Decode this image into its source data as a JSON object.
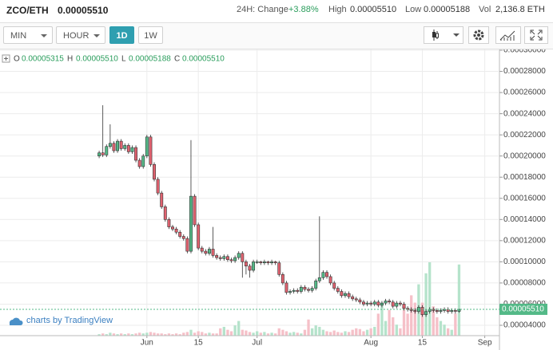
{
  "header": {
    "pair": "ZCO/ETH",
    "price": "0.00005510",
    "change_label": "24H: Change",
    "change": "+3.88%",
    "high_label": "High",
    "high": "0.00005510",
    "low_label": "Low",
    "low": "0.00005188",
    "vol_label": "Vol",
    "vol": "2,136.8 ETH"
  },
  "toolbar": {
    "min": "MIN",
    "hour": "HOUR",
    "day": "1D",
    "week": "1W"
  },
  "chart_data": {
    "type": "candlestick",
    "legend": {
      "o_label": "O",
      "o": "0.00005315",
      "h_label": "H",
      "h": "0.00005510",
      "l_label": "L",
      "l": "0.00005188",
      "c_label": "C",
      "c": "0.00005510"
    },
    "last_label": "0.00005510",
    "watermark": "charts by TradingView",
    "up_color": "#53b987",
    "down_color": "#e0626f",
    "up_volume_color": "#b5e3cb",
    "down_volume_color": "#f5c0c8",
    "grid": true,
    "xlim": [
      -9,
      127
    ],
    "xticks": [
      {
        "value": 31,
        "label": "Jun"
      },
      {
        "value": 45,
        "label": "15"
      },
      {
        "value": 61,
        "label": "Jul"
      },
      {
        "value": 92,
        "label": "Aug"
      },
      {
        "value": 106,
        "label": "15"
      },
      {
        "value": 123,
        "label": "Sep"
      }
    ],
    "ylim": [
      3.02e-05,
      0.0003
    ],
    "yticks": [
      {
        "value": 4e-05,
        "label": "0.00004000"
      },
      {
        "value": 6e-05,
        "label": "0.00006000"
      },
      {
        "value": 8e-05,
        "label": "0.00008000"
      },
      {
        "value": 0.0001,
        "label": "0.00010000"
      },
      {
        "value": 0.00012,
        "label": "0.00012000"
      },
      {
        "value": 0.00014,
        "label": "0.00014000"
      },
      {
        "value": 0.00016,
        "label": "0.00016000"
      },
      {
        "value": 0.00018,
        "label": "0.00018000"
      },
      {
        "value": 0.0002,
        "label": "0.00020000"
      },
      {
        "value": 0.00022,
        "label": "0.00022000"
      },
      {
        "value": 0.00024,
        "label": "0.00024000"
      },
      {
        "value": 0.00026,
        "label": "0.00026000"
      },
      {
        "value": 0.00028,
        "label": "0.00028000"
      },
      {
        "value": 0.0003,
        "label": "0.00030000"
      }
    ],
    "x": [
      18,
      19,
      20,
      21,
      22,
      23,
      24,
      25,
      26,
      27,
      28,
      29,
      30,
      31,
      32,
      33,
      34,
      35,
      36,
      37,
      38,
      39,
      40,
      41,
      42,
      43,
      44,
      45,
      46,
      47,
      48,
      49,
      50,
      51,
      52,
      53,
      54,
      55,
      56,
      57,
      58,
      59,
      60,
      61,
      62,
      63,
      64,
      65,
      66,
      67,
      68,
      69,
      70,
      71,
      72,
      73,
      74,
      75,
      76,
      77,
      78,
      79,
      80,
      81,
      82,
      83,
      84,
      85,
      86,
      87,
      88,
      89,
      90,
      91,
      92,
      93,
      94,
      95,
      96,
      97,
      98,
      99,
      100,
      101,
      102,
      103,
      104,
      105,
      106,
      107,
      108,
      109,
      110,
      111,
      112,
      113,
      114,
      115,
      116
    ],
    "open": [
      0.0002,
      0.000203,
      0.000201,
      0.000209,
      0.000212,
      0.000205,
      0.000214,
      0.000207,
      0.00021,
      0.000204,
      0.000208,
      0.000196,
      0.00019,
      0.0002,
      0.000218,
      0.000192,
      0.000178,
      0.000165,
      0.000152,
      0.00014,
      0.000133,
      0.000131,
      0.000128,
      0.000124,
      0.000122,
      0.00011,
      0.000162,
      0.000135,
      0.000113,
      0.00011,
      0.000108,
      0.000112,
      0.000106,
      0.000104,
      0.000103,
      0.000105,
      0.000102,
      0.000101,
      0.000104,
      0.000108,
      0.0001,
      9.6e-05,
      9.2e-05,
      0.0001,
      0.0001,
      9.9e-05,
      0.0001,
      9.9e-05,
      0.0001,
      9.9e-05,
      8.8e-05,
      8e-05,
      7.1e-05,
      7.2e-05,
      7.3e-05,
      7.2e-05,
      7.6e-05,
      7.4e-05,
      7.3e-05,
      7.5e-05,
      8.2e-05,
      8.5e-05,
      9e-05,
      8.6e-05,
      8e-05,
      7.5e-05,
      7.2e-05,
      6.8e-05,
      7e-05,
      6.7e-05,
      6.5e-05,
      6.4e-05,
      6.2e-05,
      6e-05,
      6.1e-05,
      6e-05,
      6.2e-05,
      5.9e-05,
      6.1e-05,
      6.3e-05,
      6.2e-05,
      5.8e-05,
      6.1e-05,
      6e-05,
      5.6e-05,
      5.5e-05,
      5.4e-05,
      5.3e-05,
      5.7e-05,
      5e-05,
      5.3e-05,
      5.5e-05,
      5.4e-05,
      5.3e-05,
      5.4e-05,
      5.5e-05,
      5.3e-05,
      5.4e-05,
      5.315e-05
    ],
    "high": [
      0.000205,
      0.000248,
      0.000211,
      0.00023,
      0.000214,
      0.000216,
      0.000216,
      0.000212,
      0.000212,
      0.00021,
      0.00021,
      0.000198,
      0.000202,
      0.00022,
      0.00022,
      0.000194,
      0.00018,
      0.000167,
      0.000154,
      0.000142,
      0.000135,
      0.000133,
      0.00013,
      0.000126,
      0.000124,
      0.000215,
      0.000164,
      0.000137,
      0.000115,
      0.000112,
      0.000114,
      0.000133,
      0.000108,
      0.000106,
      0.000107,
      0.000107,
      0.000104,
      0.000106,
      0.00011,
      0.00011,
      0.000102,
      9.8e-05,
      0.000102,
      0.000102,
      0.000101,
      0.000102,
      0.000101,
      0.000102,
      0.000101,
      0.000101,
      9e-05,
      8.2e-05,
      7.4e-05,
      7.5e-05,
      7.5e-05,
      7.8e-05,
      7.8e-05,
      7.6e-05,
      7.7e-05,
      8.4e-05,
      0.000143,
      9.2e-05,
      9.2e-05,
      8.8e-05,
      8.2e-05,
      7.7e-05,
      7.4e-05,
      7.2e-05,
      7.2e-05,
      6.9e-05,
      6.7e-05,
      6.6e-05,
      6.4e-05,
      6.3e-05,
      6.3e-05,
      6.4e-05,
      6.4e-05,
      6.3e-05,
      6.5e-05,
      6.5e-05,
      6.4e-05,
      6.3e-05,
      6.3e-05,
      6.2e-05,
      5.8e-05,
      5.7e-05,
      5.6e-05,
      5.9e-05,
      5.9e-05,
      5.5e-05,
      5.7e-05,
      5.7e-05,
      5.6e-05,
      5.6e-05,
      5.7e-05,
      5.7e-05,
      5.6e-05,
      5.6e-05,
      5.51e-05
    ],
    "low": [
      0.000198,
      0.000199,
      0.000199,
      0.000207,
      0.000203,
      0.000203,
      0.000205,
      0.000205,
      0.000202,
      0.000202,
      0.000194,
      0.000188,
      0.000188,
      0.000198,
      0.00019,
      0.000176,
      0.000163,
      0.00015,
      0.000138,
      0.000131,
      0.000129,
      0.000126,
      0.000122,
      0.00012,
      0.000108,
      0.000108,
      0.000133,
      0.000111,
      0.000108,
      0.000106,
      0.000106,
      0.000104,
      0.000102,
      0.000101,
      0.000101,
      0.0001,
      9.9e-05,
      9.9e-05,
      0.000102,
      8.5e-05,
      8.8e-05,
      8.5e-05,
      9e-05,
      9.8e-05,
      9.7e-05,
      9.7e-05,
      9.7e-05,
      9.7e-05,
      9.7e-05,
      8.6e-05,
      7.8e-05,
      6.9e-05,
      6.9e-05,
      7e-05,
      7e-05,
      7e-05,
      7.2e-05,
      7.1e-05,
      7.1e-05,
      7.3e-05,
      8e-05,
      8.3e-05,
      8.4e-05,
      7.8e-05,
      7.3e-05,
      7e-05,
      6.6e-05,
      6.6e-05,
      6.5e-05,
      6.3e-05,
      6.2e-05,
      6e-05,
      5.8e-05,
      5.8e-05,
      5.8e-05,
      5.8e-05,
      5.7e-05,
      5.7e-05,
      5.9e-05,
      6e-05,
      5.6e-05,
      5.6e-05,
      5.8e-05,
      5.4e-05,
      5.3e-05,
      5.2e-05,
      5.1e-05,
      5.1e-05,
      4.8e-05,
      4.8e-05,
      5.1e-05,
      5.2e-05,
      5.1e-05,
      5.1e-05,
      5.2e-05,
      5.1e-05,
      5.1e-05,
      5.1e-05,
      5.188e-05
    ],
    "close": [
      0.000203,
      0.000201,
      0.000209,
      0.000212,
      0.000205,
      0.000214,
      0.000207,
      0.00021,
      0.000204,
      0.000208,
      0.000196,
      0.00019,
      0.0002,
      0.000218,
      0.000192,
      0.000178,
      0.000165,
      0.000152,
      0.00014,
      0.000133,
      0.000131,
      0.000128,
      0.000124,
      0.000122,
      0.00011,
      0.000162,
      0.000135,
      0.000113,
      0.00011,
      0.000108,
      0.000112,
      0.000106,
      0.000104,
      0.000103,
      0.000105,
      0.000102,
      0.000101,
      0.000104,
      0.000108,
      0.0001,
      9.6e-05,
      9.2e-05,
      0.0001,
      0.0001,
      9.9e-05,
      0.0001,
      9.9e-05,
      0.0001,
      9.9e-05,
      8.8e-05,
      8e-05,
      7.1e-05,
      7.2e-05,
      7.3e-05,
      7.2e-05,
      7.6e-05,
      7.4e-05,
      7.3e-05,
      7.5e-05,
      8.2e-05,
      8.5e-05,
      9e-05,
      8.6e-05,
      8e-05,
      7.5e-05,
      7.2e-05,
      6.8e-05,
      7e-05,
      6.7e-05,
      6.5e-05,
      6.4e-05,
      6.2e-05,
      6e-05,
      6.1e-05,
      6e-05,
      6.2e-05,
      5.9e-05,
      6.1e-05,
      6.3e-05,
      6.2e-05,
      5.8e-05,
      6.1e-05,
      6e-05,
      5.6e-05,
      5.5e-05,
      5.4e-05,
      5.3e-05,
      5.7e-05,
      5e-05,
      5.3e-05,
      5.5e-05,
      5.4e-05,
      5.3e-05,
      5.4e-05,
      5.5e-05,
      5.3e-05,
      5.4e-05,
      5.32e-05,
      5.51e-05
    ],
    "volume": [
      2,
      3,
      2,
      4,
      3,
      2,
      3,
      2,
      3,
      2,
      3,
      4,
      3,
      4,
      5,
      4,
      3,
      3,
      2,
      3,
      2,
      3,
      2,
      4,
      5,
      8,
      4,
      6,
      5,
      3,
      4,
      3,
      3,
      10,
      12,
      8,
      6,
      14,
      20,
      8,
      7,
      5,
      4,
      6,
      4,
      5,
      3,
      4,
      3,
      10,
      8,
      6,
      4,
      5,
      4,
      3,
      8,
      22,
      10,
      14,
      12,
      8,
      6,
      5,
      7,
      5,
      4,
      6,
      5,
      8,
      10,
      9,
      6,
      8,
      10,
      12,
      30,
      45,
      20,
      35,
      25,
      15,
      10,
      40,
      30,
      55,
      45,
      70,
      45,
      85,
      100,
      40,
      25,
      20,
      15,
      10,
      8,
      30,
      97
    ]
  }
}
